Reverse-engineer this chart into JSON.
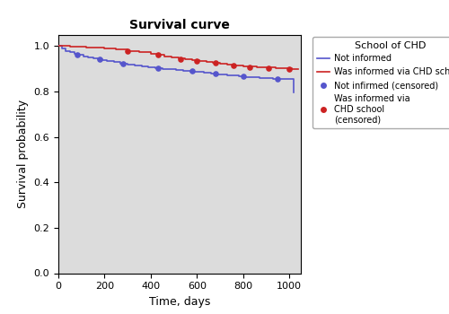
{
  "title": "Survival curve",
  "xlabel": "Time, days",
  "ylabel": "Survival probability",
  "legend_title": "School of CHD",
  "xlim": [
    0,
    1050
  ],
  "ylim": [
    0.0,
    1.05
  ],
  "yticks": [
    0.0,
    0.2,
    0.4,
    0.6,
    0.8,
    1.0
  ],
  "xticks": [
    0,
    200,
    400,
    600,
    800,
    1000
  ],
  "bg_color": "#dcdcdc",
  "blue_color": "#5555cc",
  "red_color": "#cc2222",
  "blue_curve_x": [
    0,
    15,
    30,
    50,
    70,
    90,
    110,
    130,
    150,
    170,
    190,
    210,
    240,
    270,
    300,
    330,
    360,
    390,
    420,
    450,
    480,
    510,
    540,
    570,
    600,
    630,
    660,
    690,
    710,
    730,
    750,
    780,
    810,
    840,
    870,
    900,
    930,
    960,
    990,
    1000,
    1020
  ],
  "blue_curve_y": [
    1.0,
    0.987,
    0.978,
    0.972,
    0.965,
    0.96,
    0.955,
    0.95,
    0.945,
    0.94,
    0.936,
    0.932,
    0.928,
    0.923,
    0.918,
    0.913,
    0.909,
    0.906,
    0.903,
    0.9,
    0.897,
    0.894,
    0.891,
    0.888,
    0.885,
    0.882,
    0.879,
    0.876,
    0.874,
    0.872,
    0.87,
    0.867,
    0.864,
    0.862,
    0.86,
    0.858,
    0.856,
    0.855,
    0.854,
    0.854,
    0.795
  ],
  "red_curve_x": [
    0,
    20,
    50,
    80,
    120,
    160,
    200,
    250,
    300,
    350,
    400,
    430,
    460,
    490,
    520,
    550,
    580,
    610,
    640,
    670,
    700,
    730,
    760,
    800,
    830,
    860,
    900,
    940,
    980,
    1010,
    1040
  ],
  "red_curve_y": [
    1.0,
    0.999,
    0.997,
    0.995,
    0.993,
    0.991,
    0.989,
    0.985,
    0.978,
    0.972,
    0.965,
    0.96,
    0.955,
    0.95,
    0.945,
    0.94,
    0.936,
    0.932,
    0.928,
    0.924,
    0.92,
    0.916,
    0.913,
    0.91,
    0.908,
    0.906,
    0.904,
    0.902,
    0.901,
    0.9,
    0.9
  ],
  "blue_censored_x": [
    80,
    180,
    280,
    430,
    580,
    680,
    800,
    950
  ],
  "blue_censored_y": [
    0.963,
    0.941,
    0.92,
    0.901,
    0.89,
    0.878,
    0.865,
    0.855
  ],
  "red_censored_x": [
    300,
    430,
    530,
    600,
    680,
    760,
    830,
    910,
    1000
  ],
  "red_censored_y": [
    0.978,
    0.96,
    0.943,
    0.934,
    0.924,
    0.913,
    0.907,
    0.903,
    0.9
  ]
}
